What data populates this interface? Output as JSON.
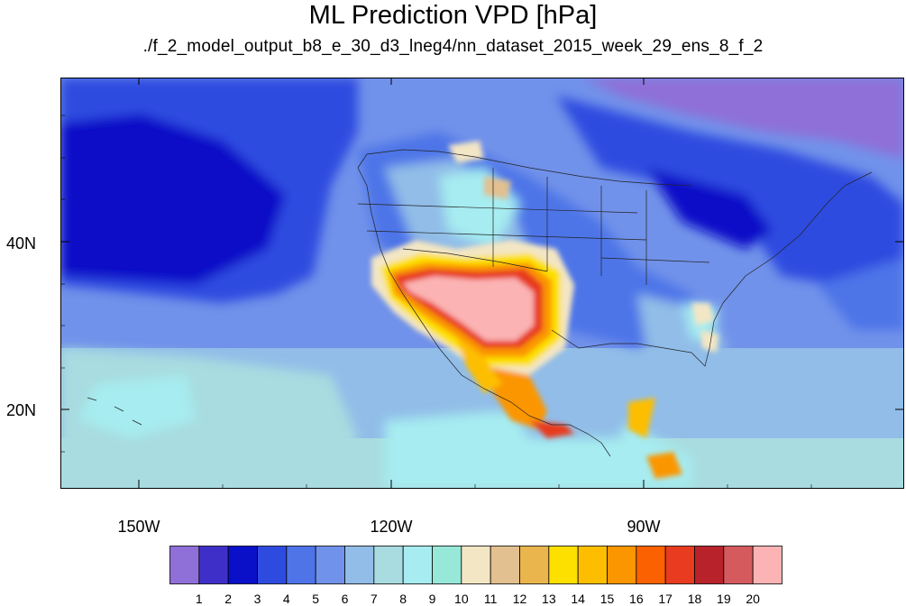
{
  "title": "ML Prediction VPD [hPa]",
  "subtitle": "./f_2_model_output_b8_e_30_d3_lneg4/nn_dataset_2015_week_29_ens_8_f_2",
  "map": {
    "lat_labels": [
      "40N",
      "20N"
    ],
    "lon_labels": [
      "150W",
      "120W",
      "90W"
    ]
  },
  "colorbar": {
    "labels": [
      "1",
      "2",
      "3",
      "4",
      "5",
      "6",
      "7",
      "8",
      "9",
      "10",
      "11",
      "12",
      "13",
      "14",
      "15",
      "16",
      "17",
      "18",
      "19",
      "20"
    ],
    "colors": [
      "#8f6fd8",
      "#3f2fc9",
      "#0a10c8",
      "#2e4be0",
      "#4e74e8",
      "#7192ea",
      "#91bde8",
      "#a8dce0",
      "#a6ecf0",
      "#97e8d8",
      "#f3e6c4",
      "#e2c08f",
      "#e9b54c",
      "#fde000",
      "#fdbe00",
      "#fb9600",
      "#fb6100",
      "#e83b1f",
      "#b8222a",
      "#d55a5e",
      "#fbb3b3"
    ]
  },
  "chart_data": {
    "type": "heatmap",
    "title": "ML Prediction VPD [hPa]",
    "subtitle": "./f_2_model_output_b8_e_30_d3_lneg4/nn_dataset_2015_week_29_ens_8_f_2",
    "lon_ticks": [
      "150W",
      "120W",
      "90W"
    ],
    "lat_ticks": [
      "40N",
      "20N"
    ],
    "lon_range": [
      -160,
      -60
    ],
    "lat_range": [
      11,
      58
    ],
    "colorbar_levels": [
      1,
      2,
      3,
      4,
      5,
      6,
      7,
      8,
      9,
      10,
      11,
      12,
      13,
      14,
      15,
      16,
      17,
      18,
      19,
      20
    ]
  }
}
